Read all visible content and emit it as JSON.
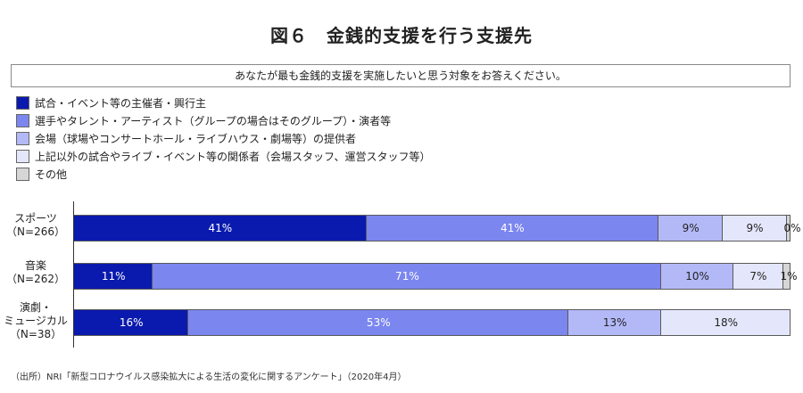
{
  "title": "図６　金銭的支援を行う支援先",
  "question": "あなたが最も金銭的支援を実施したいと思う対象をお答えください。",
  "source": "（出所）NRI「新型コロナウイルス感染拡大による生活の変化に関するアンケート」（2020年4月）",
  "colors": [
    "#0a1aae",
    "#7b86ef",
    "#b3b9f7",
    "#e4e7fc",
    "#d6d6d6"
  ],
  "chart_data": {
    "type": "bar",
    "orientation": "horizontal",
    "stacked": "percent",
    "xlim": [
      0,
      100
    ],
    "grid": false,
    "legend_position": "top-left",
    "categories": [
      "スポーツ\n（N=266）",
      "音楽\n（N=262）",
      "演劇・\nミュージカル\n（N=38）"
    ],
    "series": [
      {
        "name": "試合・イベント等の主催者・興行主",
        "values": [
          41,
          11,
          16
        ],
        "labels": [
          "41%",
          "11%",
          "16%"
        ]
      },
      {
        "name": "選手やタレント・アーティスト（グループの場合はそのグループ）・演者等",
        "values": [
          41,
          71,
          53
        ],
        "labels": [
          "41%",
          "71%",
          "53%"
        ]
      },
      {
        "name": "会場（球場やコンサートホール・ライブハウス・劇場等）の提供者",
        "values": [
          9,
          10,
          13
        ],
        "labels": [
          "9%",
          "10%",
          "13%"
        ]
      },
      {
        "name": "上記以外の試合やライブ・イベント等の関係者（会場スタッフ、運営スタッフ等）",
        "values": [
          9,
          7,
          18
        ],
        "labels": [
          "9%",
          "7%",
          "18%"
        ]
      },
      {
        "name": "その他",
        "values": [
          0.5,
          1,
          0
        ],
        "labels": [
          "0%",
          "1%",
          ""
        ]
      }
    ]
  }
}
